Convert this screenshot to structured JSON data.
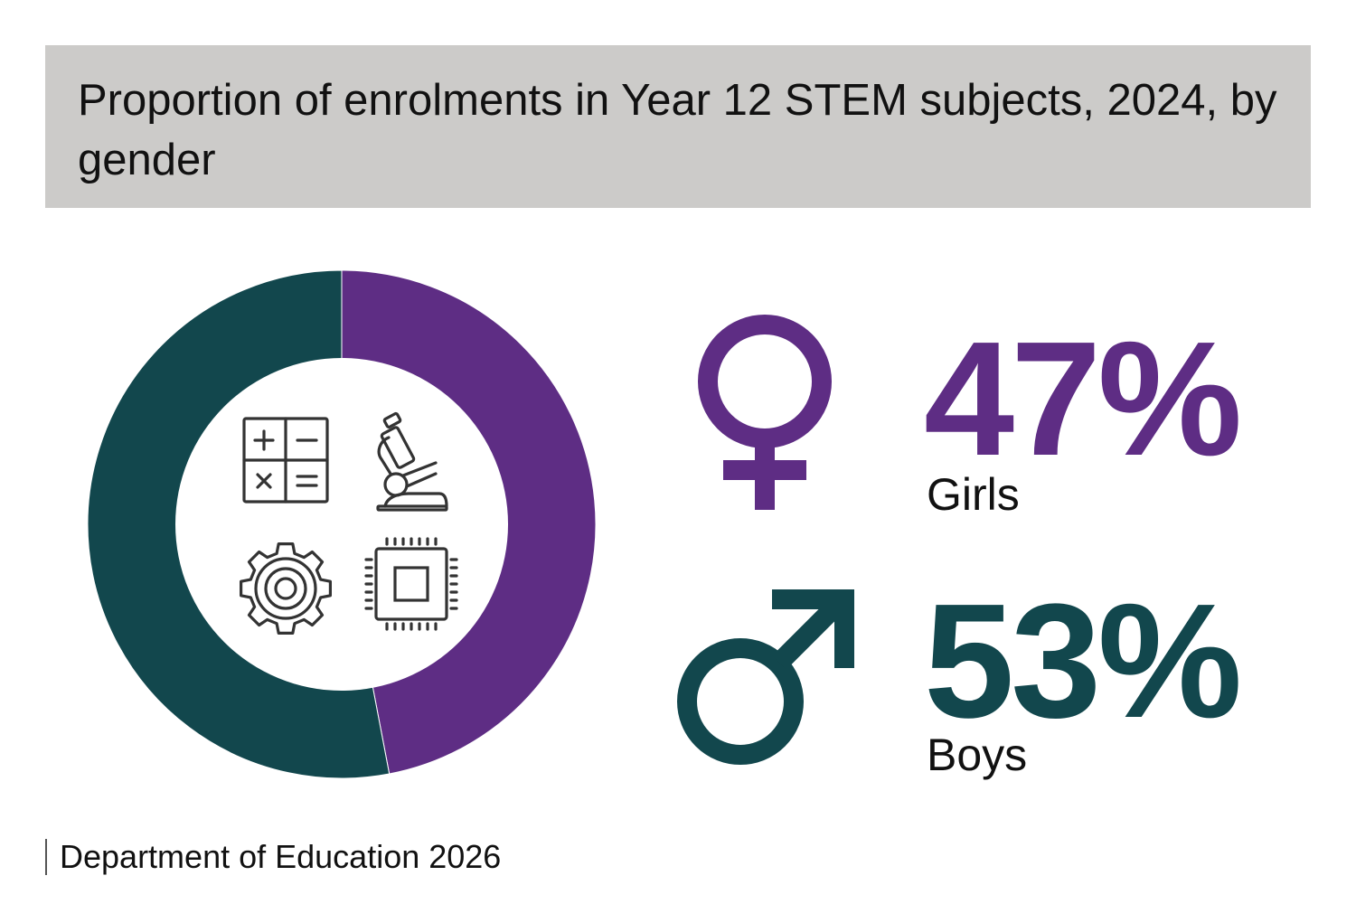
{
  "title": "Proportion of enrolments in Year 12 STEM subjects, 2024, by gender",
  "source": "Department of Education 2026",
  "colors": {
    "girls": "#5e2d84",
    "boys": "#12474d",
    "title_background": "#cccbc9"
  },
  "icons": {
    "center": [
      "math-operators-icon",
      "microscope-icon",
      "gear-icon",
      "microchip-icon"
    ],
    "girls": "female-symbol-icon",
    "boys": "male-symbol-icon"
  },
  "stats": {
    "girls": {
      "value_text": "47%",
      "label": "Girls"
    },
    "boys": {
      "value_text": "53%",
      "label": "Boys"
    }
  },
  "chart_data": {
    "type": "pie",
    "variant": "donut",
    "title": "Proportion of enrolments in Year 12 STEM subjects, 2024, by gender",
    "unit": "%",
    "categories": [
      "Girls",
      "Boys"
    ],
    "values": [
      47,
      53
    ],
    "colors": [
      "#5e2d84",
      "#12474d"
    ],
    "start_angle": "12 o'clock, clockwise",
    "legend": "right"
  }
}
